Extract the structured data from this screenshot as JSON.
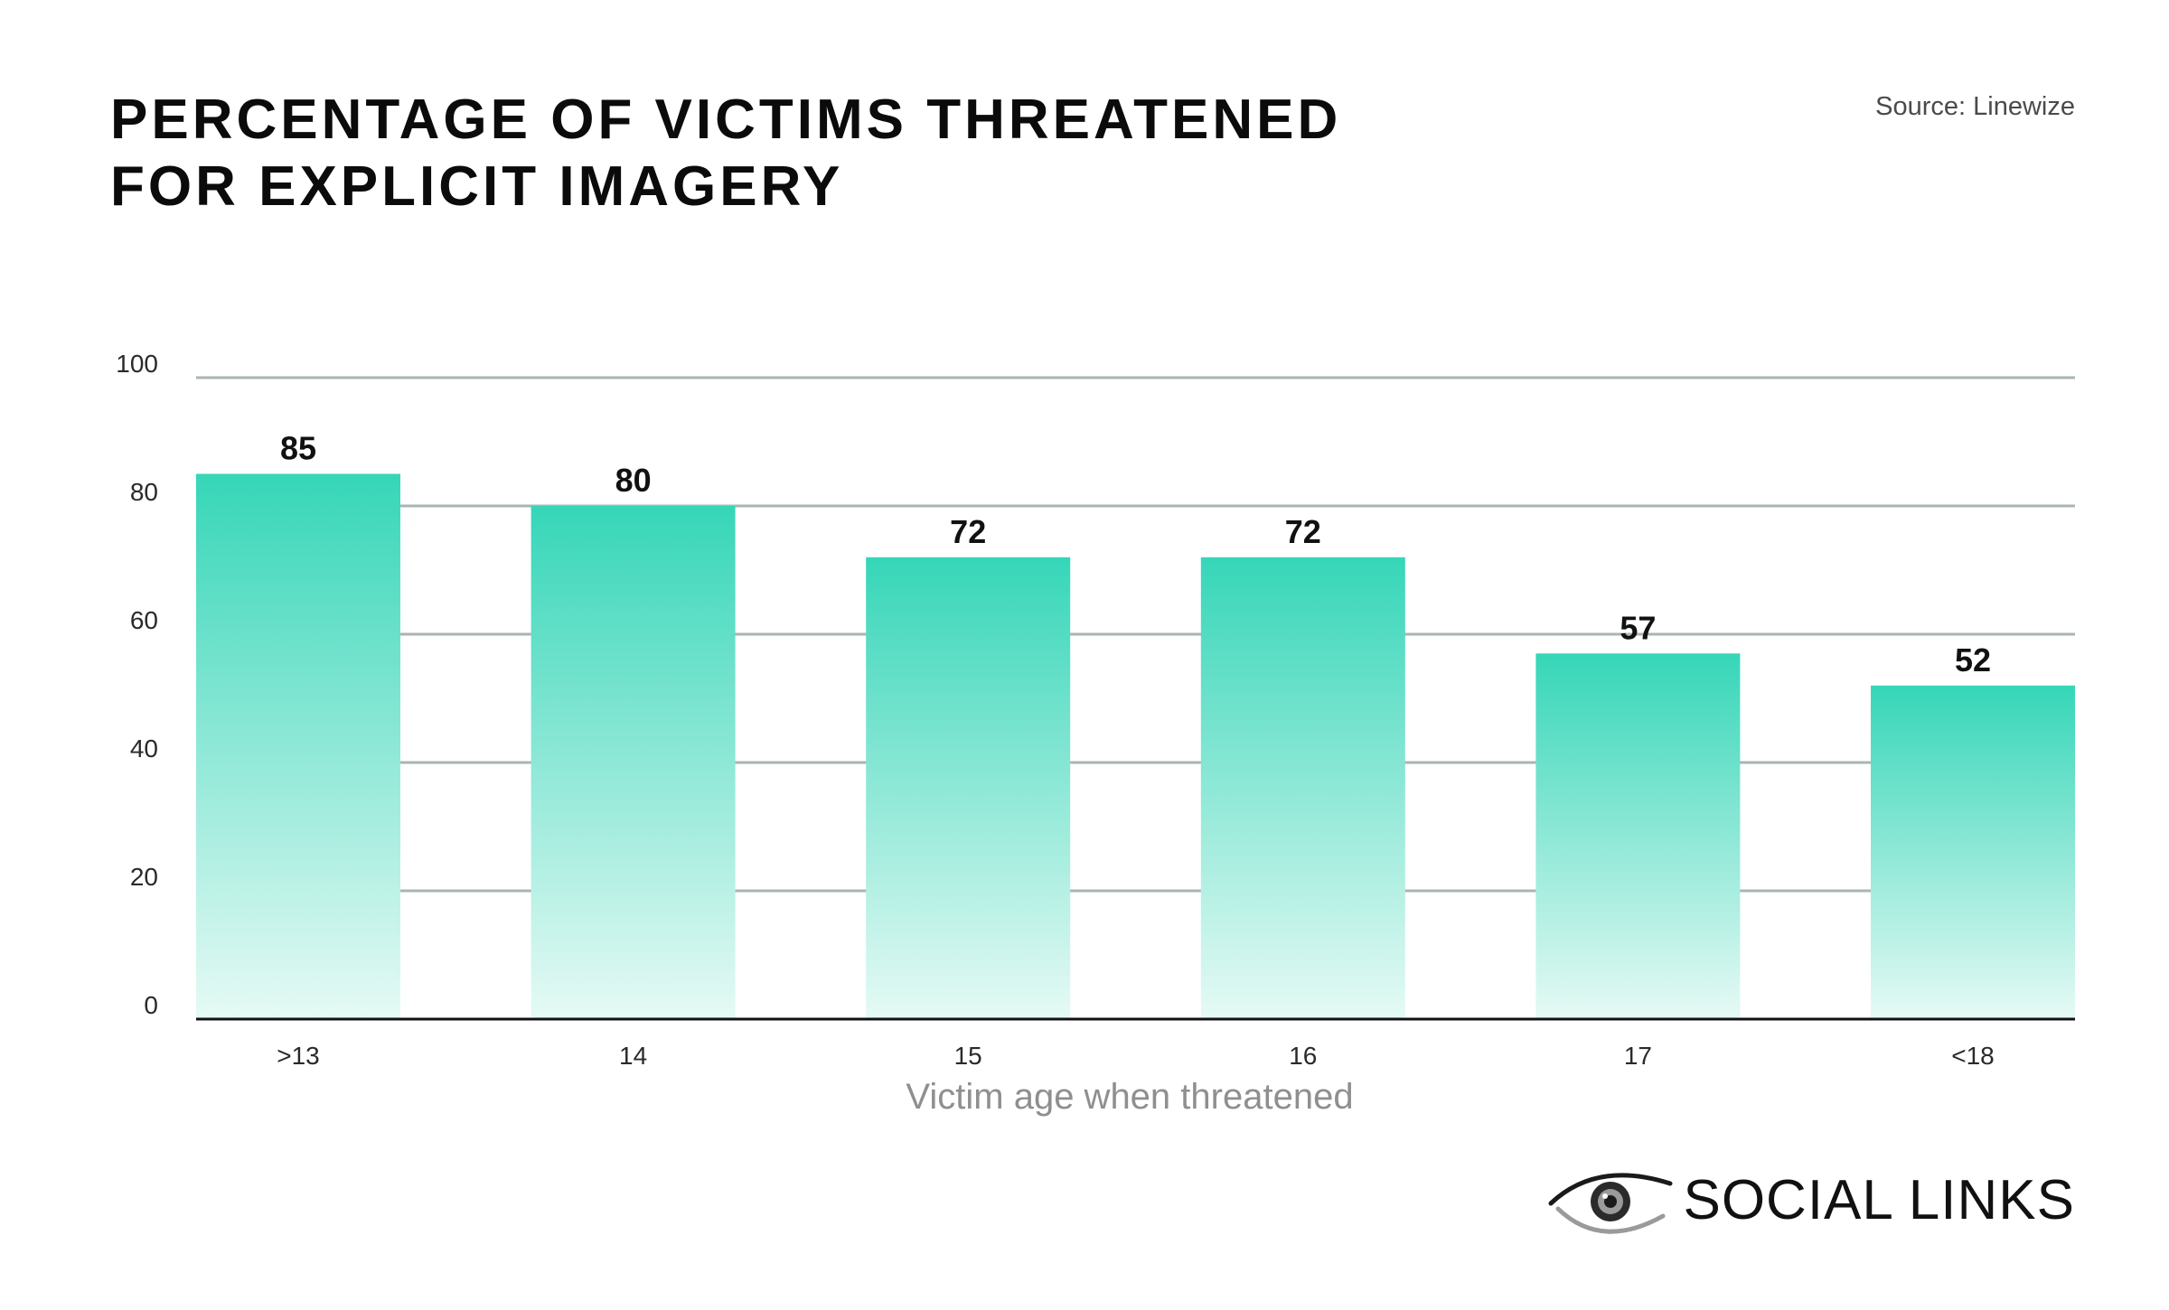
{
  "header": {
    "title_line1": "PERCENTAGE OF VICTIMS THREATENED",
    "title_line2": "FOR EXPLICIT IMAGERY",
    "source": "Source: Linewize"
  },
  "logo": {
    "text": "SOCIAL LINKS",
    "icon": "eye-icon"
  },
  "colors": {
    "bar_top": "#36d6b8",
    "bar_bottom": "#e6faf5",
    "grid": "#a9b5b2",
    "axis": "#111111"
  },
  "chart_data": {
    "type": "bar",
    "categories": [
      ">13",
      "14",
      "15",
      "16",
      "17",
      "<18"
    ],
    "values": [
      85,
      80,
      72,
      72,
      57,
      52
    ],
    "title": "PERCENTAGE OF VICTIMS THREATENED FOR EXPLICIT IMAGERY",
    "xlabel": "Victim age when threatened",
    "ylabel": "",
    "ylim": [
      0,
      100
    ],
    "yticks": [
      0,
      20,
      40,
      60,
      80,
      100
    ],
    "grid": true,
    "data_labels": true
  }
}
